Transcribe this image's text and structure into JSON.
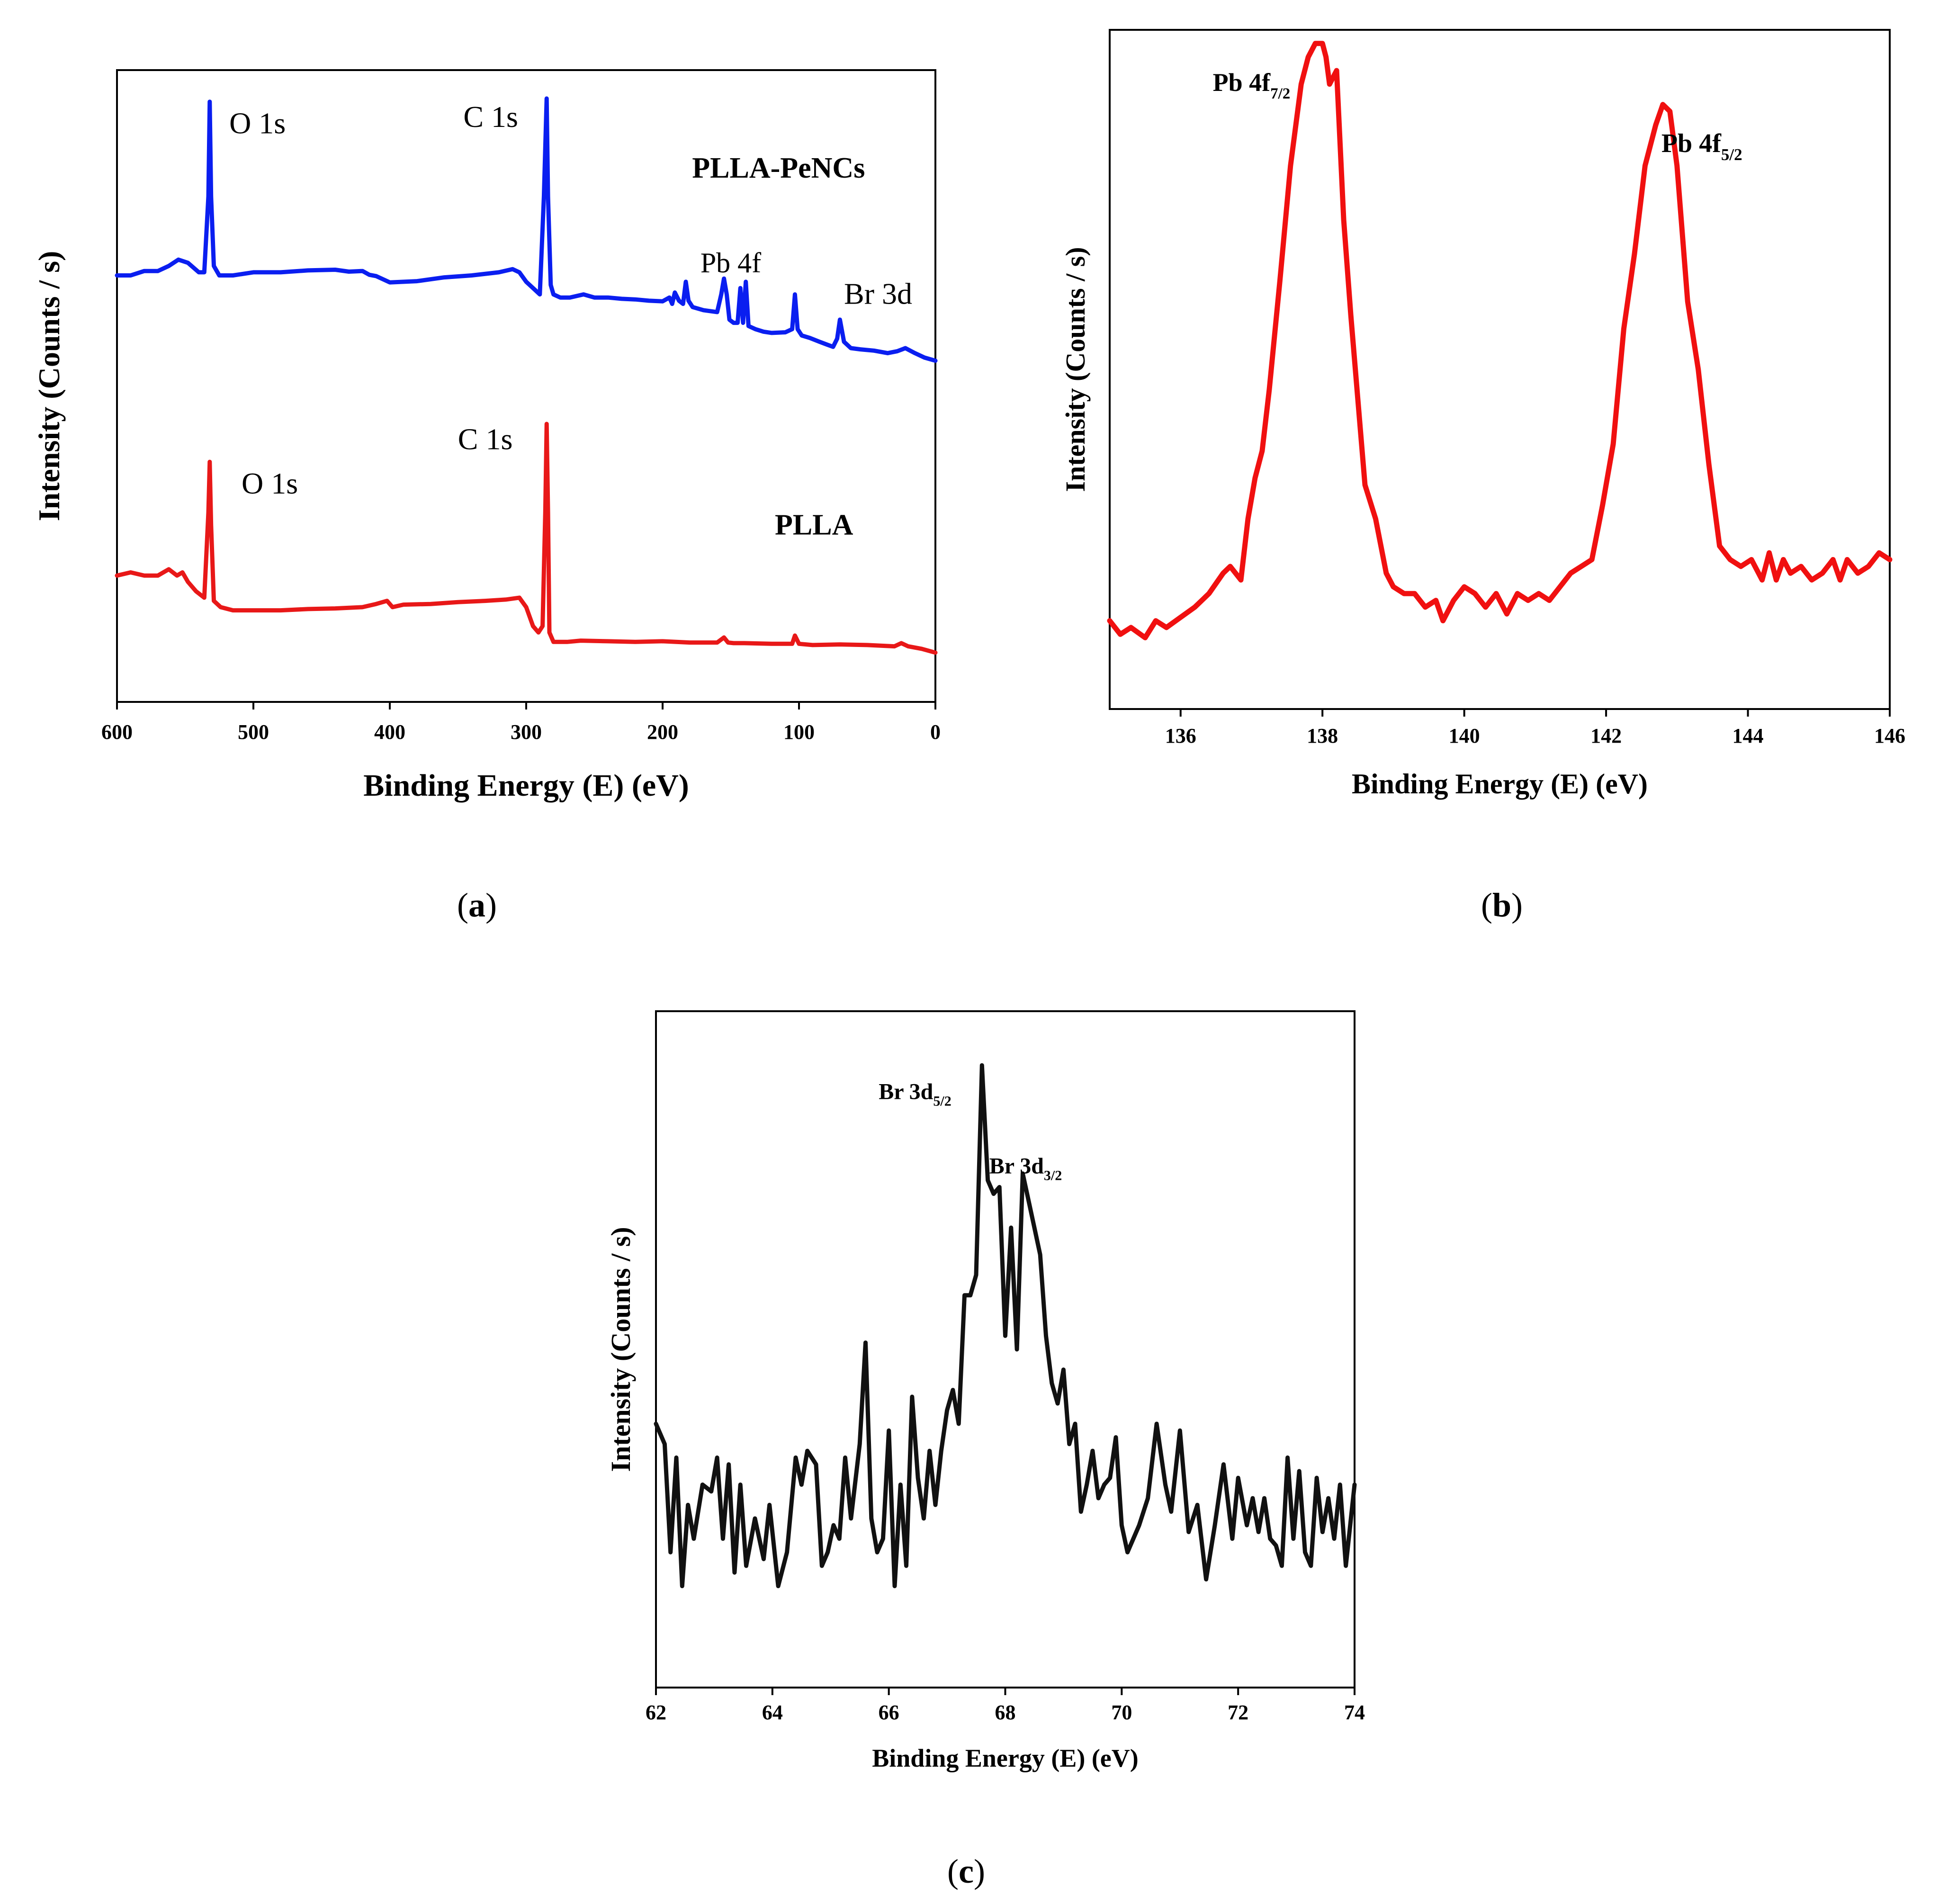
{
  "panels": {
    "a": {
      "open": "(",
      "letter": "a",
      "close": ")"
    },
    "b": {
      "open": "(",
      "letter": "b",
      "close": ")"
    },
    "c": {
      "open": "(",
      "letter": "c",
      "close": ")"
    }
  },
  "chart_data": [
    {
      "id": "a",
      "type": "line",
      "title": "",
      "xlabel": "Binding Energy (E) (eV)",
      "ylabel": "Intensity (Counts / s)",
      "xlim": [
        600,
        0
      ],
      "xreversed": true,
      "ylim": [
        0,
        1
      ],
      "xticks": [
        600,
        500,
        400,
        300,
        200,
        100,
        0
      ],
      "grid": false,
      "series": [
        {
          "name": "PLLA-PeNCs",
          "color": "#0a1ef0",
          "x": [
            600,
            590,
            580,
            570,
            562,
            555,
            548,
            540,
            536,
            533,
            532,
            531,
            529,
            525,
            515,
            500,
            480,
            460,
            440,
            430,
            420,
            415,
            410,
            400,
            380,
            360,
            340,
            320,
            310,
            305,
            300,
            295,
            290,
            287,
            285,
            284,
            282,
            280,
            275,
            268,
            258,
            250,
            240,
            230,
            220,
            210,
            200,
            195,
            193,
            191,
            188,
            185,
            183,
            181,
            178,
            170,
            160,
            157,
            155,
            153,
            151,
            148,
            145,
            143,
            141,
            139,
            137,
            132,
            126,
            120,
            110,
            105,
            103,
            101,
            98,
            92,
            85,
            80,
            75,
            72,
            70,
            67,
            62,
            55,
            45,
            35,
            28,
            22,
            15,
            8,
            0
          ],
          "y": [
            0.675,
            0.675,
            0.682,
            0.682,
            0.69,
            0.7,
            0.695,
            0.68,
            0.68,
            0.8,
            0.95,
            0.8,
            0.69,
            0.675,
            0.675,
            0.68,
            0.68,
            0.683,
            0.684,
            0.681,
            0.682,
            0.676,
            0.674,
            0.664,
            0.666,
            0.672,
            0.675,
            0.68,
            0.685,
            0.68,
            0.665,
            0.655,
            0.645,
            0.8,
            0.955,
            0.8,
            0.66,
            0.645,
            0.64,
            0.64,
            0.645,
            0.64,
            0.64,
            0.638,
            0.637,
            0.635,
            0.634,
            0.64,
            0.63,
            0.648,
            0.635,
            0.63,
            0.665,
            0.635,
            0.625,
            0.62,
            0.617,
            0.645,
            0.67,
            0.645,
            0.605,
            0.6,
            0.6,
            0.655,
            0.6,
            0.665,
            0.595,
            0.59,
            0.586,
            0.584,
            0.585,
            0.59,
            0.645,
            0.59,
            0.58,
            0.576,
            0.57,
            0.566,
            0.562,
            0.575,
            0.605,
            0.57,
            0.56,
            0.558,
            0.556,
            0.552,
            0.555,
            0.56,
            0.552,
            0.545,
            0.54
          ]
        },
        {
          "name": "PLLA",
          "color": "#e81818",
          "x": [
            600,
            590,
            580,
            570,
            562,
            556,
            552,
            548,
            542,
            536,
            533,
            532,
            531,
            529,
            524,
            515,
            500,
            480,
            460,
            440,
            420,
            410,
            402,
            398,
            390,
            370,
            350,
            330,
            315,
            305,
            300,
            295,
            291,
            288,
            286,
            285,
            284,
            283,
            280,
            270,
            260,
            240,
            220,
            200,
            180,
            160,
            155,
            152,
            148,
            140,
            120,
            105,
            103,
            100,
            90,
            70,
            50,
            30,
            25,
            20,
            10,
            0
          ],
          "y": [
            0.2,
            0.205,
            0.2,
            0.2,
            0.21,
            0.2,
            0.205,
            0.19,
            0.175,
            0.165,
            0.3,
            0.38,
            0.28,
            0.16,
            0.15,
            0.145,
            0.145,
            0.145,
            0.147,
            0.148,
            0.15,
            0.155,
            0.16,
            0.15,
            0.154,
            0.155,
            0.158,
            0.16,
            0.162,
            0.165,
            0.15,
            0.12,
            0.11,
            0.12,
            0.3,
            0.44,
            0.3,
            0.11,
            0.095,
            0.095,
            0.097,
            0.096,
            0.095,
            0.096,
            0.094,
            0.094,
            0.102,
            0.094,
            0.093,
            0.093,
            0.092,
            0.092,
            0.105,
            0.092,
            0.09,
            0.091,
            0.09,
            0.088,
            0.093,
            0.088,
            0.084,
            0.078
          ]
        }
      ],
      "annotations": [
        {
          "text": "O 1s",
          "x": 497,
          "y": 0.9,
          "size": 64,
          "family": "sans",
          "weight": "normal"
        },
        {
          "text": "C 1s",
          "x": 326,
          "y": 0.91,
          "size": 64,
          "family": "sans",
          "weight": "normal"
        },
        {
          "text": "PLLA-PeNCs",
          "x": 115,
          "y": 0.83,
          "size": 62,
          "family": "serif",
          "weight": "bold"
        },
        {
          "text": "Pb 4f",
          "x": 150,
          "y": 0.68,
          "size": 60,
          "family": "sans",
          "weight": "normal"
        },
        {
          "text": "Br 3d",
          "x": 42,
          "y": 0.63,
          "size": 64,
          "family": "sans",
          "weight": "normal"
        },
        {
          "text": "C 1s",
          "x": 330,
          "y": 0.4,
          "size": 64,
          "family": "sans",
          "weight": "normal"
        },
        {
          "text": "O 1s",
          "x": 488,
          "y": 0.33,
          "size": 64,
          "family": "sans",
          "weight": "normal"
        },
        {
          "text": "PLLA",
          "x": 89,
          "y": 0.265,
          "size": 62,
          "family": "serif",
          "weight": "bold"
        }
      ]
    },
    {
      "id": "b",
      "type": "line",
      "title": "",
      "xlabel": "Binding Energy (E) (eV)",
      "ylabel": "Intensity (Counts / s)",
      "xlim": [
        135,
        146
      ],
      "xreversed": false,
      "ylim": [
        0,
        1
      ],
      "xticks": [
        136,
        138,
        140,
        142,
        144,
        146
      ],
      "grid": false,
      "series": [
        {
          "name": "Pb 4f",
          "color": "#f01010",
          "x": [
            135.0,
            135.15,
            135.3,
            135.5,
            135.65,
            135.8,
            136.0,
            136.2,
            136.4,
            136.6,
            136.7,
            136.85,
            136.95,
            137.05,
            137.15,
            137.25,
            137.4,
            137.55,
            137.7,
            137.8,
            137.9,
            138.0,
            138.05,
            138.1,
            138.2,
            138.3,
            138.4,
            138.6,
            138.75,
            138.9,
            139.0,
            139.15,
            139.3,
            139.45,
            139.6,
            139.7,
            139.85,
            140.0,
            140.15,
            140.3,
            140.45,
            140.6,
            140.75,
            140.9,
            141.05,
            141.2,
            141.35,
            141.5,
            141.65,
            141.8,
            141.95,
            142.1,
            142.25,
            142.4,
            142.55,
            142.7,
            142.8,
            142.9,
            143.0,
            143.15,
            143.3,
            143.45,
            143.6,
            143.75,
            143.9,
            144.05,
            144.2,
            144.3,
            144.4,
            144.5,
            144.6,
            144.75,
            144.9,
            145.05,
            145.2,
            145.3,
            145.4,
            145.55,
            145.7,
            145.85,
            146.0
          ],
          "y": [
            0.13,
            0.11,
            0.12,
            0.105,
            0.13,
            0.12,
            0.135,
            0.15,
            0.17,
            0.2,
            0.21,
            0.19,
            0.28,
            0.34,
            0.38,
            0.47,
            0.63,
            0.8,
            0.92,
            0.96,
            0.98,
            0.98,
            0.96,
            0.92,
            0.94,
            0.72,
            0.58,
            0.33,
            0.28,
            0.2,
            0.18,
            0.17,
            0.17,
            0.15,
            0.16,
            0.13,
            0.16,
            0.18,
            0.17,
            0.15,
            0.17,
            0.14,
            0.17,
            0.16,
            0.17,
            0.16,
            0.18,
            0.2,
            0.21,
            0.22,
            0.3,
            0.39,
            0.56,
            0.67,
            0.8,
            0.86,
            0.89,
            0.88,
            0.8,
            0.6,
            0.5,
            0.36,
            0.24,
            0.22,
            0.21,
            0.22,
            0.19,
            0.23,
            0.19,
            0.22,
            0.2,
            0.21,
            0.19,
            0.2,
            0.22,
            0.19,
            0.22,
            0.2,
            0.21,
            0.23,
            0.22
          ]
        }
      ],
      "annotations": [
        {
          "text": "Pb 4f",
          "sub": "7/2",
          "x": 137.0,
          "y": 0.91,
          "size": 54,
          "family": "sans",
          "weight": "bold"
        },
        {
          "text": "Pb 4f",
          "sub": "5/2",
          "x": 143.35,
          "y": 0.82,
          "size": 56,
          "family": "sans",
          "weight": "bold"
        }
      ]
    },
    {
      "id": "c",
      "type": "line",
      "title": "",
      "xlabel": "Binding Energy (E) (eV)",
      "ylabel": "Intensity (Counts / s)",
      "xlim": [
        62,
        74
      ],
      "xreversed": false,
      "ylim": [
        0,
        1
      ],
      "xticks": [
        62,
        64,
        66,
        68,
        70,
        72,
        74
      ],
      "grid": false,
      "series": [
        {
          "name": "Br 3d",
          "color": "#111111",
          "x": [
            62.0,
            62.15,
            62.25,
            62.35,
            62.45,
            62.55,
            62.65,
            62.8,
            62.95,
            63.05,
            63.15,
            63.25,
            63.35,
            63.45,
            63.55,
            63.7,
            63.85,
            63.95,
            64.1,
            64.25,
            64.4,
            64.5,
            64.6,
            64.75,
            64.85,
            64.95,
            65.05,
            65.15,
            65.25,
            65.35,
            65.5,
            65.6,
            65.7,
            65.8,
            65.9,
            66.0,
            66.1,
            66.2,
            66.3,
            66.4,
            66.5,
            66.6,
            66.7,
            66.8,
            66.9,
            67.0,
            67.1,
            67.2,
            67.3,
            67.4,
            67.5,
            67.6,
            67.7,
            67.8,
            67.9,
            68.0,
            68.1,
            68.2,
            68.3,
            68.4,
            68.5,
            68.6,
            68.7,
            68.8,
            68.9,
            69.0,
            69.1,
            69.2,
            69.3,
            69.4,
            69.5,
            69.6,
            69.7,
            69.8,
            69.9,
            70.0,
            70.1,
            70.2,
            70.3,
            70.45,
            70.6,
            70.75,
            70.85,
            71.0,
            71.15,
            71.3,
            71.45,
            71.6,
            71.75,
            71.9,
            72.0,
            72.15,
            72.25,
            72.35,
            72.45,
            72.55,
            72.65,
            72.75,
            72.85,
            72.95,
            73.05,
            73.15,
            73.25,
            73.35,
            73.45,
            73.55,
            73.65,
            73.75,
            73.85,
            74.0
          ],
          "y": [
            0.39,
            0.36,
            0.2,
            0.34,
            0.15,
            0.27,
            0.22,
            0.3,
            0.29,
            0.34,
            0.22,
            0.33,
            0.17,
            0.3,
            0.18,
            0.25,
            0.19,
            0.27,
            0.15,
            0.2,
            0.34,
            0.3,
            0.35,
            0.33,
            0.18,
            0.2,
            0.24,
            0.22,
            0.34,
            0.25,
            0.36,
            0.51,
            0.25,
            0.2,
            0.22,
            0.38,
            0.15,
            0.3,
            0.18,
            0.43,
            0.31,
            0.25,
            0.35,
            0.27,
            0.35,
            0.41,
            0.44,
            0.39,
            0.58,
            0.58,
            0.61,
            0.92,
            0.75,
            0.73,
            0.74,
            0.52,
            0.68,
            0.5,
            0.76,
            0.72,
            0.68,
            0.64,
            0.52,
            0.45,
            0.42,
            0.47,
            0.36,
            0.39,
            0.26,
            0.3,
            0.35,
            0.28,
            0.3,
            0.31,
            0.37,
            0.24,
            0.2,
            0.22,
            0.24,
            0.28,
            0.39,
            0.3,
            0.26,
            0.38,
            0.23,
            0.27,
            0.16,
            0.24,
            0.33,
            0.22,
            0.31,
            0.24,
            0.28,
            0.23,
            0.28,
            0.22,
            0.21,
            0.18,
            0.34,
            0.22,
            0.32,
            0.2,
            0.18,
            0.31,
            0.23,
            0.28,
            0.22,
            0.3,
            0.18,
            0.3
          ]
        }
      ],
      "annotations": [
        {
          "text": "Br 3d",
          "sub": "5/2",
          "x": 66.45,
          "y": 0.87,
          "size": 48,
          "family": "sans",
          "weight": "bold"
        },
        {
          "text": "Br 3d",
          "sub": "3/2",
          "x": 68.35,
          "y": 0.76,
          "size": 48,
          "family": "sans",
          "weight": "bold"
        }
      ]
    }
  ]
}
